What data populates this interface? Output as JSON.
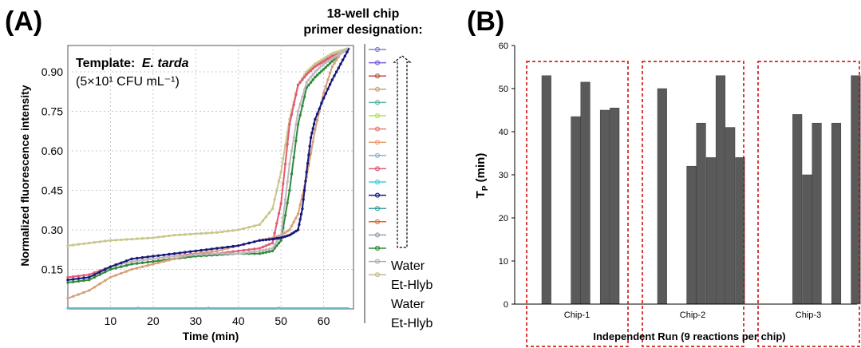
{
  "panels": {
    "a": {
      "label": "(A)"
    },
    "b": {
      "label": "(B)"
    }
  },
  "chart_data": [
    {
      "type": "line",
      "panel": "(A)",
      "template_label": "Template:",
      "template_species": "E. tarda",
      "template_concentration": "(5×10¹ CFU mL⁻¹)",
      "xlabel": "Time (min)",
      "ylabel": "Normalized fluorescence intensity",
      "xlim": [
        0,
        67
      ],
      "ylim": [
        0,
        1.0
      ],
      "xticks": [
        10,
        20,
        30,
        40,
        50,
        60
      ],
      "yticks": [
        0.15,
        0.3,
        0.45,
        0.6,
        0.75,
        0.9
      ],
      "ytick_labels": [
        "0.15",
        "0.30",
        "0.45",
        "0.60",
        "0.75",
        "0.90"
      ],
      "grid": true,
      "legend_title_line1": "18-well chip",
      "legend_title_line2": "primer designation:",
      "legend_labels": [
        "Water",
        "Et-Hlyb",
        "Water",
        "Et-Hlyb"
      ],
      "legend_colors": [
        "#8a7fd1",
        "#7b5de0",
        "#b5533d",
        "#c9a57a",
        "#5fb3a8",
        "#a9e84e",
        "#e07f7a",
        "#e8a070",
        "#7fb8e0",
        "#e05a7a",
        "#3fd0e0",
        "#1a1a8a",
        "#3aa0a0",
        "#e06a2a",
        "#9aa0b0",
        "#2e8b3a",
        "#b8a8b0",
        "#c8b890"
      ],
      "series": [
        {
          "name": "",
          "color": "#c8c78a",
          "x": [
            0,
            5,
            10,
            15,
            20,
            25,
            30,
            35,
            40,
            45,
            48,
            50,
            52,
            54,
            56,
            58,
            60,
            62,
            64,
            66
          ],
          "y": [
            0.24,
            0.25,
            0.26,
            0.265,
            0.27,
            0.28,
            0.285,
            0.29,
            0.3,
            0.32,
            0.38,
            0.52,
            0.72,
            0.85,
            0.9,
            0.93,
            0.95,
            0.97,
            0.98,
            0.99
          ]
        },
        {
          "name": "",
          "color": "#e25a73",
          "x": [
            0,
            5,
            10,
            15,
            20,
            25,
            30,
            35,
            40,
            45,
            48,
            50,
            52,
            54,
            56,
            58,
            60,
            62,
            64,
            66
          ],
          "y": [
            0.12,
            0.13,
            0.16,
            0.18,
            0.19,
            0.2,
            0.21,
            0.21,
            0.22,
            0.23,
            0.25,
            0.4,
            0.7,
            0.85,
            0.89,
            0.92,
            0.94,
            0.96,
            0.97,
            0.99
          ]
        },
        {
          "name": "",
          "color": "#2d8a3a",
          "x": [
            0,
            5,
            10,
            15,
            20,
            25,
            30,
            35,
            40,
            45,
            48,
            50,
            52,
            54,
            56,
            58,
            60,
            62,
            64,
            66
          ],
          "y": [
            0.1,
            0.11,
            0.15,
            0.17,
            0.18,
            0.19,
            0.2,
            0.205,
            0.21,
            0.21,
            0.22,
            0.26,
            0.45,
            0.7,
            0.84,
            0.88,
            0.91,
            0.94,
            0.97,
            0.99
          ]
        },
        {
          "name": "",
          "color": "#d8a07a",
          "x": [
            0,
            5,
            10,
            15,
            20,
            25,
            30,
            35,
            40,
            45,
            48,
            50,
            52,
            54,
            56,
            58,
            60,
            62,
            64,
            66
          ],
          "y": [
            0.04,
            0.07,
            0.12,
            0.15,
            0.17,
            0.19,
            0.21,
            0.22,
            0.24,
            0.26,
            0.27,
            0.28,
            0.3,
            0.36,
            0.5,
            0.68,
            0.82,
            0.92,
            0.97,
            0.99
          ]
        },
        {
          "name": "",
          "color": "#c0b8c0",
          "x": [
            0,
            5,
            10,
            15,
            20,
            25,
            30,
            35,
            40,
            45,
            48,
            50,
            52,
            54,
            56,
            58,
            60,
            62,
            64,
            66
          ],
          "y": [
            0.11,
            0.12,
            0.16,
            0.18,
            0.19,
            0.2,
            0.205,
            0.21,
            0.21,
            0.22,
            0.23,
            0.28,
            0.55,
            0.75,
            0.86,
            0.9,
            0.93,
            0.95,
            0.97,
            0.99
          ]
        },
        {
          "name": "",
          "color": "#16187a",
          "x": [
            0,
            5,
            10,
            15,
            20,
            25,
            30,
            35,
            40,
            45,
            48,
            50,
            52,
            54,
            55,
            56,
            57,
            58,
            60,
            62,
            64,
            66
          ],
          "y": [
            0.11,
            0.12,
            0.16,
            0.19,
            0.2,
            0.21,
            0.22,
            0.23,
            0.24,
            0.26,
            0.265,
            0.27,
            0.28,
            0.3,
            0.38,
            0.52,
            0.65,
            0.72,
            0.8,
            0.87,
            0.93,
            0.99
          ]
        },
        {
          "name": "",
          "color": "#6fb7c0",
          "x": [
            0,
            66
          ],
          "y": [
            0.003,
            0.003
          ]
        }
      ]
    },
    {
      "type": "bar",
      "panel": "(B)",
      "xlabel": "Independent Run (9 reactions per chip)",
      "ylabel": "T",
      "ylabel_sub": "P",
      "ylabel_suffix": " (min)",
      "ylim": [
        0,
        60
      ],
      "yticks": [
        0,
        10,
        20,
        30,
        40,
        50,
        60
      ],
      "groups": [
        "Chip-1",
        "Chip-2",
        "Chip-3"
      ],
      "values": [
        [
          53,
          0,
          0,
          43.5,
          51.5,
          0,
          45,
          45.5,
          0
        ],
        [
          50,
          0,
          0,
          32,
          42,
          34,
          53,
          41,
          34
        ],
        [
          0,
          0,
          44,
          30,
          42,
          0,
          42,
          0,
          53
        ]
      ],
      "bar_color": "#5a5a5a",
      "box_color": "#cc0000"
    }
  ]
}
